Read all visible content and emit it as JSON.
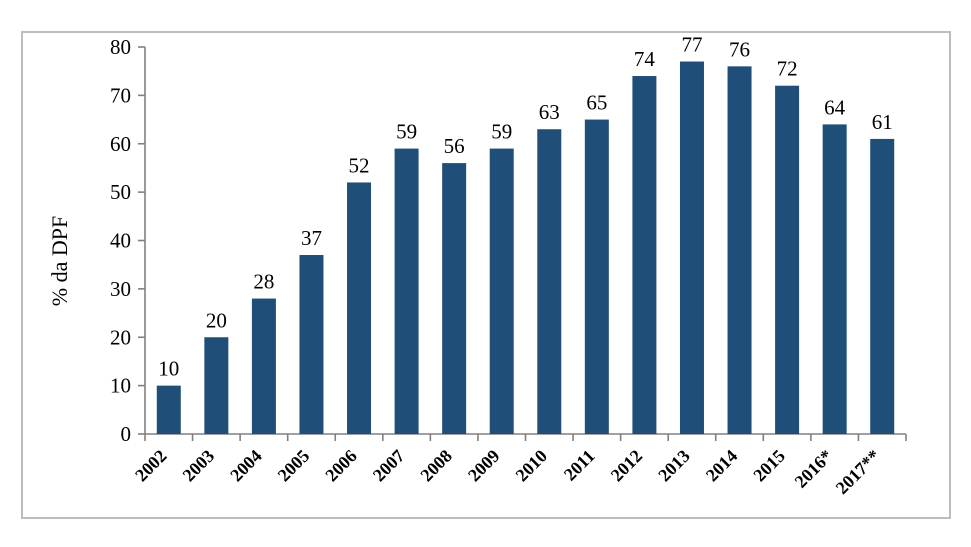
{
  "chart_data": {
    "type": "bar",
    "title": "",
    "xlabel": "",
    "ylabel": "% da DPF",
    "categories": [
      "2002",
      "2003",
      "2004",
      "2005",
      "2006",
      "2007",
      "2008",
      "2009",
      "2010",
      "2011",
      "2012",
      "2013",
      "2014",
      "2015",
      "2016*",
      "2017**"
    ],
    "values": [
      10,
      20,
      28,
      37,
      52,
      59,
      56,
      59,
      63,
      65,
      74,
      77,
      76,
      72,
      64,
      61
    ],
    "bar_labels": [
      "10",
      "20",
      "28",
      "37",
      "52",
      "59",
      "56",
      "59",
      "63",
      "65",
      "74",
      "77",
      "76",
      "72",
      "64",
      "61"
    ],
    "y_ticks": [
      0,
      10,
      20,
      30,
      40,
      50,
      60,
      70,
      80
    ],
    "ylim": [
      0,
      80
    ],
    "grid": false,
    "legend": false,
    "x_label_rotation_deg": -45,
    "bar_color": "#1F4E79",
    "axis_color": "#808080",
    "text_color": "#000000",
    "frame_border_color": "#BDBDBD"
  }
}
